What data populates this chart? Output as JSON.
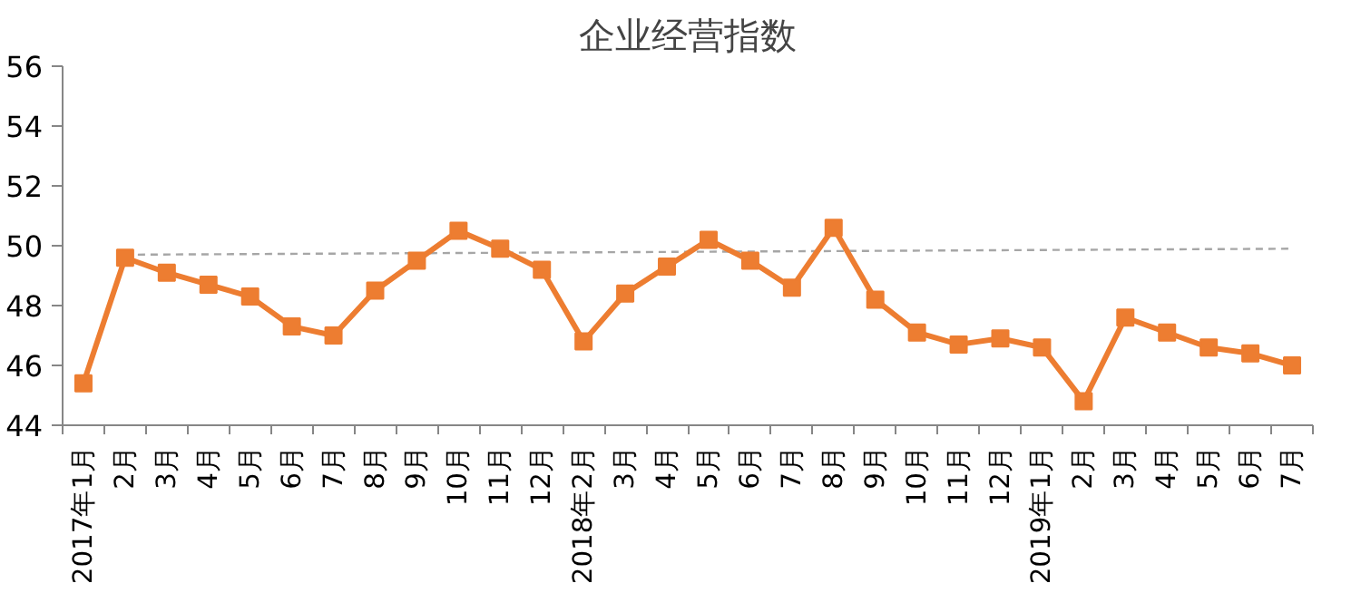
{
  "chart_data": {
    "type": "line",
    "title": "企业经营指数",
    "categories": [
      "2017年1月",
      "2月",
      "3月",
      "4月",
      "5月",
      "6月",
      "7月",
      "8月",
      "9月",
      "10月",
      "11月",
      "12月",
      "2018年2月",
      "3月",
      "4月",
      "5月",
      "6月",
      "7月",
      "8月",
      "9月",
      "10月",
      "11月",
      "12月",
      "2019年1月",
      "2月",
      "3月",
      "4月",
      "5月",
      "6月",
      "7月"
    ],
    "series": [
      {
        "color": "#ed7d31",
        "marker": "square",
        "line_style": "solid",
        "values": [
          45.4,
          49.6,
          49.1,
          48.7,
          48.3,
          47.3,
          47.0,
          48.5,
          49.5,
          50.5,
          49.9,
          49.2,
          46.8,
          48.4,
          49.3,
          50.2,
          49.5,
          48.6,
          50.6,
          48.2,
          47.1,
          46.7,
          46.9,
          46.6,
          44.8,
          47.6,
          47.1,
          46.6,
          46.4,
          46.0
        ]
      },
      {
        "color": "#a6a6a6",
        "marker": "none",
        "line_style": "dashed",
        "values": [
          null,
          49.7,
          null,
          null,
          null,
          null,
          null,
          null,
          null,
          null,
          null,
          null,
          null,
          null,
          null,
          null,
          null,
          null,
          null,
          null,
          null,
          null,
          null,
          null,
          null,
          null,
          null,
          null,
          null,
          49.9
        ]
      }
    ],
    "ylim": [
      44,
      56
    ],
    "yticks": [
      44,
      46,
      48,
      50,
      52,
      54,
      56
    ],
    "grid": false
  }
}
